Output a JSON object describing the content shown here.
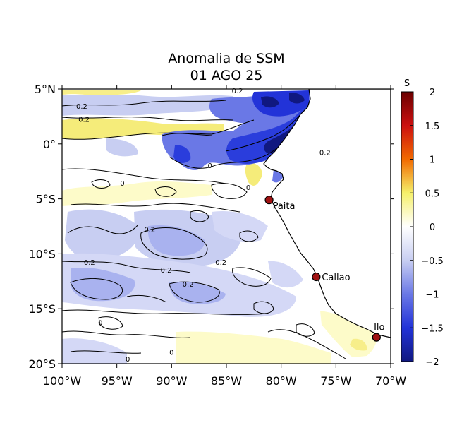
{
  "title": {
    "line1": "Anomalia de SSM",
    "line2": "01 AGO 25"
  },
  "map": {
    "lon_range": [
      -100,
      -70
    ],
    "lat_range": [
      -20,
      5
    ],
    "lon_ticks": [
      {
        "value": -100,
        "label": "100°W"
      },
      {
        "value": -95,
        "label": "95°W"
      },
      {
        "value": -90,
        "label": "90°W"
      },
      {
        "value": -85,
        "label": "85°W"
      },
      {
        "value": -80,
        "label": "80°W"
      },
      {
        "value": -75,
        "label": "75°W"
      },
      {
        "value": -70,
        "label": "70°W"
      }
    ],
    "lat_ticks": [
      {
        "value": 5,
        "label": "5°N"
      },
      {
        "value": 0,
        "label": "0°"
      },
      {
        "value": -5,
        "label": "5°S"
      },
      {
        "value": -10,
        "label": "10°S"
      },
      {
        "value": -15,
        "label": "15°S"
      },
      {
        "value": -20,
        "label": "20°S"
      }
    ],
    "cities": [
      {
        "name": "Paita",
        "lon": -81.1,
        "lat": -5.1,
        "label_side": "right-below"
      },
      {
        "name": "Callao",
        "lon": -76.8,
        "lat": -12.1,
        "label_side": "right"
      },
      {
        "name": "Ilo",
        "lon": -71.3,
        "lat": -17.6,
        "label_side": "above"
      }
    ],
    "contour_labels": [
      {
        "text": "0.2",
        "lon": -98.2,
        "lat": 3.2
      },
      {
        "text": "0.2",
        "lon": -98.0,
        "lat": 2.0
      },
      {
        "text": "0.2",
        "lon": -84.0,
        "lat": 4.6
      },
      {
        "text": "0",
        "lon": -94.5,
        "lat": -3.8
      },
      {
        "text": "0",
        "lon": -86.5,
        "lat": -2.2
      },
      {
        "text": "0",
        "lon": -83.0,
        "lat": -4.2
      },
      {
        "text": "0.2",
        "lon": -92.0,
        "lat": -8.0
      },
      {
        "text": "0.2",
        "lon": -97.5,
        "lat": -11.0
      },
      {
        "text": "0.2",
        "lon": -90.5,
        "lat": -11.7
      },
      {
        "text": "0.2",
        "lon": -85.5,
        "lat": -11.0
      },
      {
        "text": "0.2",
        "lon": -88.5,
        "lat": -13.0
      },
      {
        "text": "0",
        "lon": -96.5,
        "lat": -16.5
      },
      {
        "text": "0",
        "lon": -94.0,
        "lat": -19.8
      },
      {
        "text": "0",
        "lon": -90.0,
        "lat": -19.2
      },
      {
        "text": "0.2",
        "lon": -76.0,
        "lat": -1.0
      }
    ]
  },
  "colorbar": {
    "unit_label": "S",
    "range": [
      -2,
      2
    ],
    "ticks": [
      {
        "value": 2,
        "label": "2"
      },
      {
        "value": 1.5,
        "label": "1.5"
      },
      {
        "value": 1,
        "label": "1"
      },
      {
        "value": 0.5,
        "label": "0.5"
      },
      {
        "value": 0,
        "label": "0"
      },
      {
        "value": -0.5,
        "label": "−0.5"
      },
      {
        "value": -1,
        "label": "−1"
      },
      {
        "value": -1.5,
        "label": "−1.5"
      },
      {
        "value": -2,
        "label": "−2"
      }
    ],
    "stops": [
      {
        "value": 2,
        "color": "#6a0000"
      },
      {
        "value": 1.5,
        "color": "#cc1010"
      },
      {
        "value": 1,
        "color": "#f26a00"
      },
      {
        "value": 0.5,
        "color": "#f5f06a"
      },
      {
        "value": 0,
        "color": "#ffffff"
      },
      {
        "value": -0.5,
        "color": "#c8cef2"
      },
      {
        "value": -1,
        "color": "#6a78e6"
      },
      {
        "value": -1.5,
        "color": "#2233d8"
      },
      {
        "value": -2,
        "color": "#101880"
      }
    ]
  },
  "colors": {
    "land": "#ffffff",
    "strong_negative": "#1f32d8",
    "moderate_negative": "#5468e6",
    "light_negative": "#a9b2ef",
    "very_light_negative": "#d4d8f6",
    "light_positive": "#fdfbc9",
    "moderate_positive": "#f5ec7a",
    "city_marker": "#a01212"
  }
}
